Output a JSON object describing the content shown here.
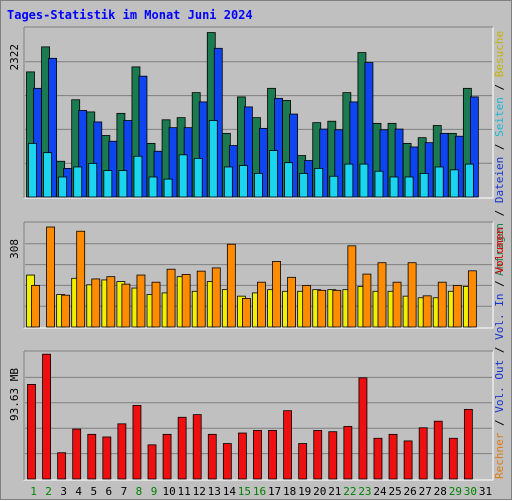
{
  "title": "Tages-Statistik im Monat Juni 2024",
  "legend": {
    "top": [
      {
        "text": "Anfragen",
        "color": "#237a4e"
      },
      {
        "text": "Dateien",
        "color": "#1433d0"
      },
      {
        "text": "Seiten",
        "color": "#15b8d8"
      },
      {
        "text": "Besuche",
        "color": "#c8b400"
      }
    ],
    "mid": [
      {
        "text": "Rechner",
        "color": "#e07a10"
      },
      {
        "text": "Vol. Out",
        "color": "#1433d0"
      },
      {
        "text": "Vol. In",
        "color": "#1433d0"
      },
      {
        "text": "Volumen",
        "color": "#dd0000"
      }
    ],
    "sep": "/"
  },
  "chart_data": [
    {
      "type": "bar",
      "title": "Tages-Statistik im Monat Juni 2024",
      "ylabel": "2322",
      "ylim": [
        0,
        2322
      ],
      "categories": [
        "1",
        "2",
        "3",
        "4",
        "5",
        "6",
        "7",
        "8",
        "9",
        "10",
        "11",
        "12",
        "13",
        "14",
        "15",
        "16",
        "17",
        "18",
        "19",
        "20",
        "21",
        "22",
        "23",
        "24",
        "25",
        "26",
        "27",
        "28",
        "29",
        "30",
        "31"
      ],
      "weekend_days": [
        "1",
        "2",
        "8",
        "9",
        "15",
        "16",
        "22",
        "23",
        "29",
        "30"
      ],
      "series": [
        {
          "name": "Anfragen",
          "color": "#1b7a50",
          "values": [
            1750,
            2100,
            500,
            1360,
            1190,
            860,
            1170,
            1820,
            750,
            1080,
            1110,
            1460,
            2300,
            890,
            1400,
            1110,
            1520,
            1350,
            580,
            1040,
            1060,
            1460,
            2020,
            1030,
            1030,
            750,
            830,
            1000,
            890,
            1520,
            0
          ]
        },
        {
          "name": "Dateien",
          "color": "#0f45f0",
          "values": [
            1520,
            1940,
            400,
            1210,
            1050,
            780,
            1070,
            1690,
            640,
            970,
            970,
            1330,
            2080,
            720,
            1260,
            960,
            1380,
            1160,
            510,
            950,
            940,
            1330,
            1880,
            940,
            950,
            700,
            760,
            890,
            850,
            1400,
            0
          ]
        },
        {
          "name": "Seiten",
          "color": "#1ad4f0",
          "values": [
            750,
            620,
            280,
            420,
            470,
            370,
            370,
            570,
            280,
            250,
            590,
            540,
            1070,
            420,
            440,
            330,
            650,
            480,
            330,
            400,
            290,
            460,
            460,
            360,
            280,
            280,
            330,
            420,
            380,
            460,
            0
          ]
        }
      ]
    },
    {
      "type": "bar",
      "ylabel": "308",
      "ylim": [
        0,
        308
      ],
      "categories": [
        "1",
        "2",
        "3",
        "4",
        "5",
        "6",
        "7",
        "8",
        "9",
        "10",
        "11",
        "12",
        "13",
        "14",
        "15",
        "16",
        "17",
        "18",
        "19",
        "20",
        "21",
        "22",
        "23",
        "24",
        "25",
        "26",
        "27",
        "28",
        "29",
        "30",
        "31"
      ],
      "series": [
        {
          "name": "Besuche",
          "color": "#f0f000",
          "values": [
            160,
            0,
            100,
            150,
            130,
            145,
            140,
            120,
            100,
            105,
            155,
            110,
            140,
            115,
            95,
            105,
            115,
            110,
            110,
            115,
            115,
            115,
            125,
            110,
            110,
            95,
            90,
            90,
            110,
            125,
            0
          ]
        },
        {
          "name": "Rechner",
          "color": "#ff8c00",
          "values": [
            128,
            308,
            98,
            295,
            148,
            155,
            132,
            160,
            138,
            178,
            162,
            172,
            182,
            255,
            88,
            138,
            202,
            153,
            128,
            113,
            113,
            250,
            163,
            198,
            138,
            198,
            96,
            138,
            128,
            173,
            0
          ]
        }
      ]
    },
    {
      "type": "bar",
      "ylabel": "93.63 MB",
      "ylim": [
        0,
        93.63
      ],
      "categories": [
        "1",
        "2",
        "3",
        "4",
        "5",
        "6",
        "7",
        "8",
        "9",
        "10",
        "11",
        "12",
        "13",
        "14",
        "15",
        "16",
        "17",
        "18",
        "19",
        "20",
        "21",
        "22",
        "23",
        "24",
        "25",
        "26",
        "27",
        "28",
        "29",
        "30",
        "31"
      ],
      "series": [
        {
          "name": "Volumen",
          "color": "#ee1010",
          "values": [
            72,
            95,
            20,
            38,
            34,
            32,
            42,
            56,
            26,
            34,
            47,
            49,
            34,
            27,
            35,
            37,
            37,
            52,
            27,
            37,
            36,
            40,
            77,
            31,
            34,
            29,
            39,
            44,
            31,
            53,
            0
          ]
        }
      ]
    }
  ]
}
